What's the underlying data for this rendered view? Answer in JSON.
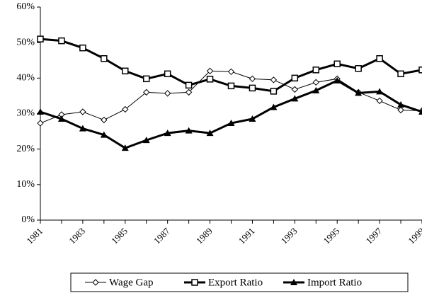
{
  "chart_data": {
    "type": "line",
    "categories": [
      "1981",
      null,
      "1983",
      null,
      "1985",
      null,
      "1987",
      null,
      "1989",
      null,
      "1991",
      null,
      "1993",
      null,
      "1995",
      null,
      "1997",
      null,
      "1999"
    ],
    "series": [
      {
        "name": "Wage Gap",
        "color": "#000000",
        "marker": "diamond-open",
        "values": [
          27.3,
          29.7,
          30.5,
          28.2,
          31.2,
          36,
          35.7,
          36,
          42,
          41.8,
          39.8,
          39.5,
          36.8,
          38.8,
          39.8,
          36,
          33.6,
          31,
          30.8
        ]
      },
      {
        "name": "Export Ratio",
        "color": "#000000",
        "marker": "square-open",
        "values": [
          51,
          50.5,
          48.5,
          45.5,
          42,
          39.8,
          41.2,
          38,
          39.7,
          37.8,
          37.2,
          36.3,
          40,
          42.3,
          44,
          42.7,
          45.5,
          41.2,
          42.3
        ]
      },
      {
        "name": "Import Ratio",
        "color": "#000000",
        "marker": "triangle-filled",
        "values": [
          30.5,
          28.5,
          25.8,
          24,
          20.3,
          22.5,
          24.5,
          25.2,
          24.5,
          27.3,
          28.5,
          31.8,
          34.2,
          36.5,
          39.3,
          35.8,
          36.2,
          32.5,
          30.5
        ]
      }
    ],
    "ylim": [
      0,
      60
    ],
    "yticks": [
      {
        "value": 0,
        "label": "0%"
      },
      {
        "value": 10,
        "label": "10%"
      },
      {
        "value": 20,
        "label": "20%"
      },
      {
        "value": 30,
        "label": "30%"
      },
      {
        "value": 40,
        "label": "40%"
      },
      {
        "value": 50,
        "label": "50%"
      },
      {
        "value": 60,
        "label": "60%"
      }
    ],
    "grid": false,
    "legend": "bottom"
  }
}
